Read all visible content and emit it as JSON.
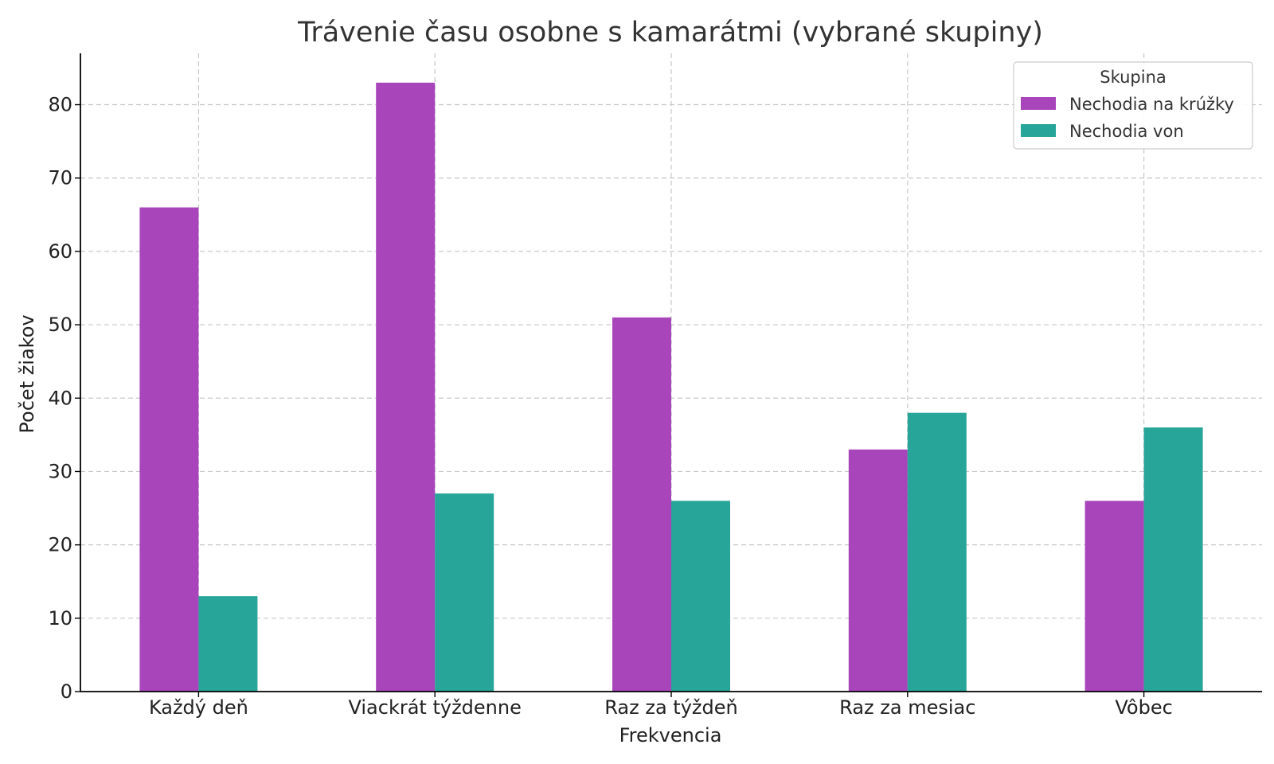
{
  "chart_data": {
    "type": "bar",
    "title": "Trávenie času osobne s kamarátmi (vybrané skupiny)",
    "xlabel": "Frekvencia",
    "ylabel": "Počet žiakov",
    "categories": [
      "Každý deň",
      "Viackrát týždenne",
      "Raz za týždeň",
      "Raz za mesiac",
      "Vôbec"
    ],
    "series": [
      {
        "name": "Nechodia na krúžky",
        "values": [
          66,
          83,
          51,
          33,
          26
        ],
        "color": "#a845bb"
      },
      {
        "name": "Nechodia von",
        "values": [
          13,
          27,
          26,
          38,
          36
        ],
        "color": "#27a598"
      }
    ],
    "ylim": [
      0,
      87
    ],
    "yticks": [
      0,
      10,
      20,
      30,
      40,
      50,
      60,
      70,
      80
    ],
    "grid": true,
    "legend": {
      "title": "Skupina",
      "position": "top-right"
    }
  }
}
